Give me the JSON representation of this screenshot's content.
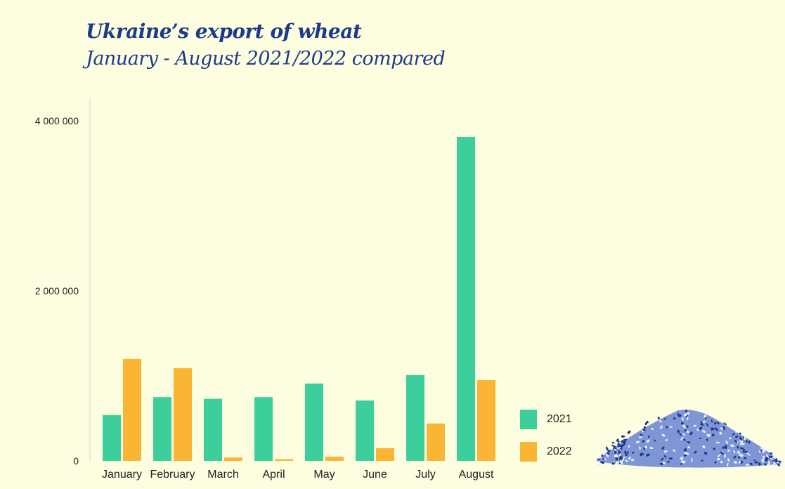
{
  "chart_data": {
    "type": "bar",
    "title": "Ukraine’s export of wheat",
    "subtitle": "January - August 2021/2022 compared",
    "categories": [
      "January",
      "February",
      "March",
      "April",
      "May",
      "June",
      "July",
      "August"
    ],
    "series": [
      {
        "name": "2021",
        "color": "#3ccf9b",
        "values": [
          540000,
          750000,
          730000,
          750000,
          910000,
          710000,
          1010000,
          3810000
        ]
      },
      {
        "name": "2022",
        "color": "#fbb534",
        "values": [
          1200000,
          1090000,
          40000,
          20000,
          50000,
          150000,
          440000,
          950000
        ]
      }
    ],
    "ylim": [
      0,
      4000000
    ],
    "yticks": [
      0,
      2000000,
      4000000
    ],
    "ytick_labels": [
      "0",
      "2 000 000",
      "4 000 000"
    ],
    "legend_position": "bottom-right",
    "grid": false
  }
}
